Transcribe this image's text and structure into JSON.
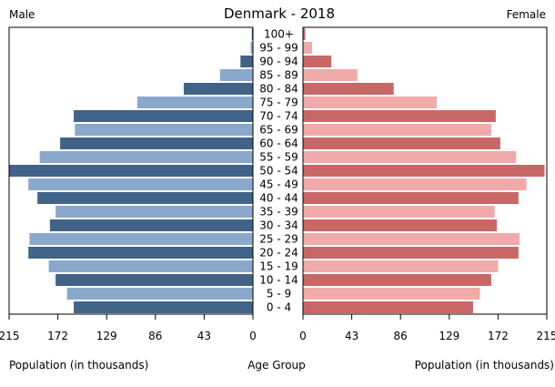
{
  "chart_data": {
    "type": "bar",
    "title": "Denmark - 2018",
    "left_label": "Male",
    "right_label": "Female",
    "xlabel_left": "Population (in thousands)",
    "xlabel_center": "Age Group",
    "xlabel_right": "Population (in thousands)",
    "categories": [
      "0 - 4",
      "5 - 9",
      "10 - 14",
      "15 - 19",
      "20 - 24",
      "25 - 29",
      "30 - 34",
      "35 - 39",
      "40 - 44",
      "45 - 49",
      "50 - 54",
      "55 - 59",
      "60 - 64",
      "65 - 69",
      "70 - 74",
      "75 - 79",
      "80 - 84",
      "85 - 89",
      "90 - 94",
      "95 - 99",
      "100+"
    ],
    "series": [
      {
        "name": "Male",
        "values": [
          158,
          164,
          174,
          180,
          198,
          197,
          179,
          174,
          190,
          198,
          215,
          188,
          170,
          157,
          158,
          102,
          61,
          29,
          11,
          2,
          1
        ]
      },
      {
        "name": "Female",
        "values": [
          150,
          156,
          166,
          172,
          190,
          191,
          171,
          169,
          190,
          197,
          213,
          188,
          174,
          166,
          170,
          118,
          80,
          48,
          25,
          8,
          2
        ]
      }
    ],
    "xlim": [
      0,
      215
    ],
    "ticks": [
      "215",
      "172",
      "129",
      "86",
      "43",
      "0"
    ],
    "ticks_right": [
      "0",
      "43",
      "86",
      "129",
      "172",
      "215"
    ],
    "colors": {
      "male_dark": "#426388",
      "male_light": "#8aa8cb",
      "female_dark": "#c96767",
      "female_light": "#f0aaaa"
    }
  }
}
